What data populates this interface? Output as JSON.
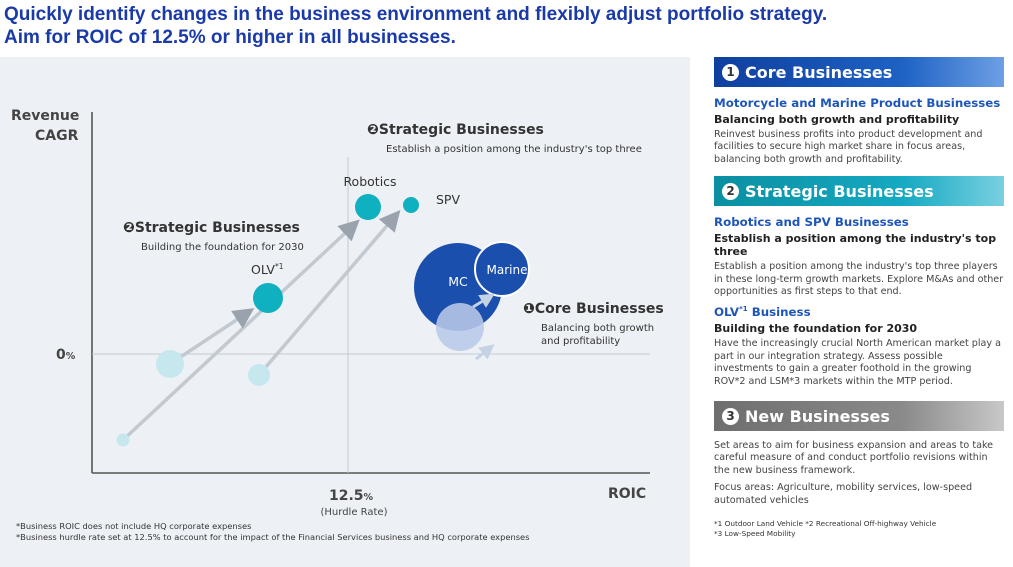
{
  "headline": {
    "line1": "Quickly identify changes in the business environment and flexibly adjust portfolio strategy.",
    "line2": "Aim for ROIC of 12.5% or higher in all businesses."
  },
  "chart": {
    "y_axis_label_1": "Revenue",
    "y_axis_label_2": "CAGR",
    "zero_label": "0",
    "zero_pct": "%",
    "x_tick_value": "12.5",
    "x_tick_pct": "%",
    "hurdle_label": "(Hurdle Rate)",
    "x_axis_label": "ROIC",
    "strategic_top_num": "❷",
    "strategic_top_title": "Strategic Businesses",
    "strategic_top_sub": "Establish a position among the industry's top three",
    "strategic_left_num": "❷",
    "strategic_left_title": "Strategic Businesses",
    "strategic_left_sub": "Building the foundation for 2030",
    "core_num": "❶",
    "core_title": "Core Businesses",
    "core_sub_1": "Balancing both growth",
    "core_sub_2": "and profitability",
    "bubble_olv": "OLV",
    "bubble_olv_sup": "*1",
    "bubble_robotics": "Robotics",
    "bubble_spv": "SPV",
    "bubble_mc": "MC",
    "bubble_marine": "Marine"
  },
  "notes": [
    "*Business ROIC does not include HQ corporate expenses",
    "*Business hurdle rate set at 12.5% to account for the impact of the Financial Services business and HQ corporate expenses"
  ],
  "colors": {
    "headline": "#1a3aa8",
    "teal": "#0fb0bf",
    "navy": "#1a4fae",
    "panel": "#edf1f6"
  },
  "core": {
    "num": "1",
    "banner": "Core Businesses",
    "title": "Motorcycle and Marine Product Businesses",
    "subtitle": "Balancing both growth and profitability",
    "body": "Reinvest business profits into product development and facilities to secure high market share in focus areas, balancing both growth and profitability."
  },
  "strategic": {
    "num": "2",
    "banner": "Strategic Businesses",
    "title": "Robotics and SPV Businesses",
    "subtitle": "Establish a position among the industry's top three",
    "body": "Establish a position among the industry's top three players in these long-term growth markets. Explore M&As and other opportunities as first steps to that end.",
    "olv_title": "OLV",
    "olv_title_sup": "*1",
    "olv_title_rest": " Business",
    "olv_subtitle": "Building the foundation for 2030",
    "olv_body": "Have the increasingly crucial North American market play a part in our integration strategy. Assess possible investments to gain a greater foothold in the growing ROV*2 and LSM*3 markets within the MTP period."
  },
  "new_biz": {
    "num": "3",
    "banner": "New Businesses",
    "body": "Set areas to aim for business expansion and areas to take careful measure of and conduct portfolio revisions within the new business framework.",
    "focus": "Focus areas: Agriculture, mobility services, low-speed automated vehicles"
  },
  "footnotes": {
    "line1": "*1 Outdoor Land Vehicle  *2 Recreational Off-highway Vehicle",
    "line2": "*3 Low-Speed Mobility"
  }
}
